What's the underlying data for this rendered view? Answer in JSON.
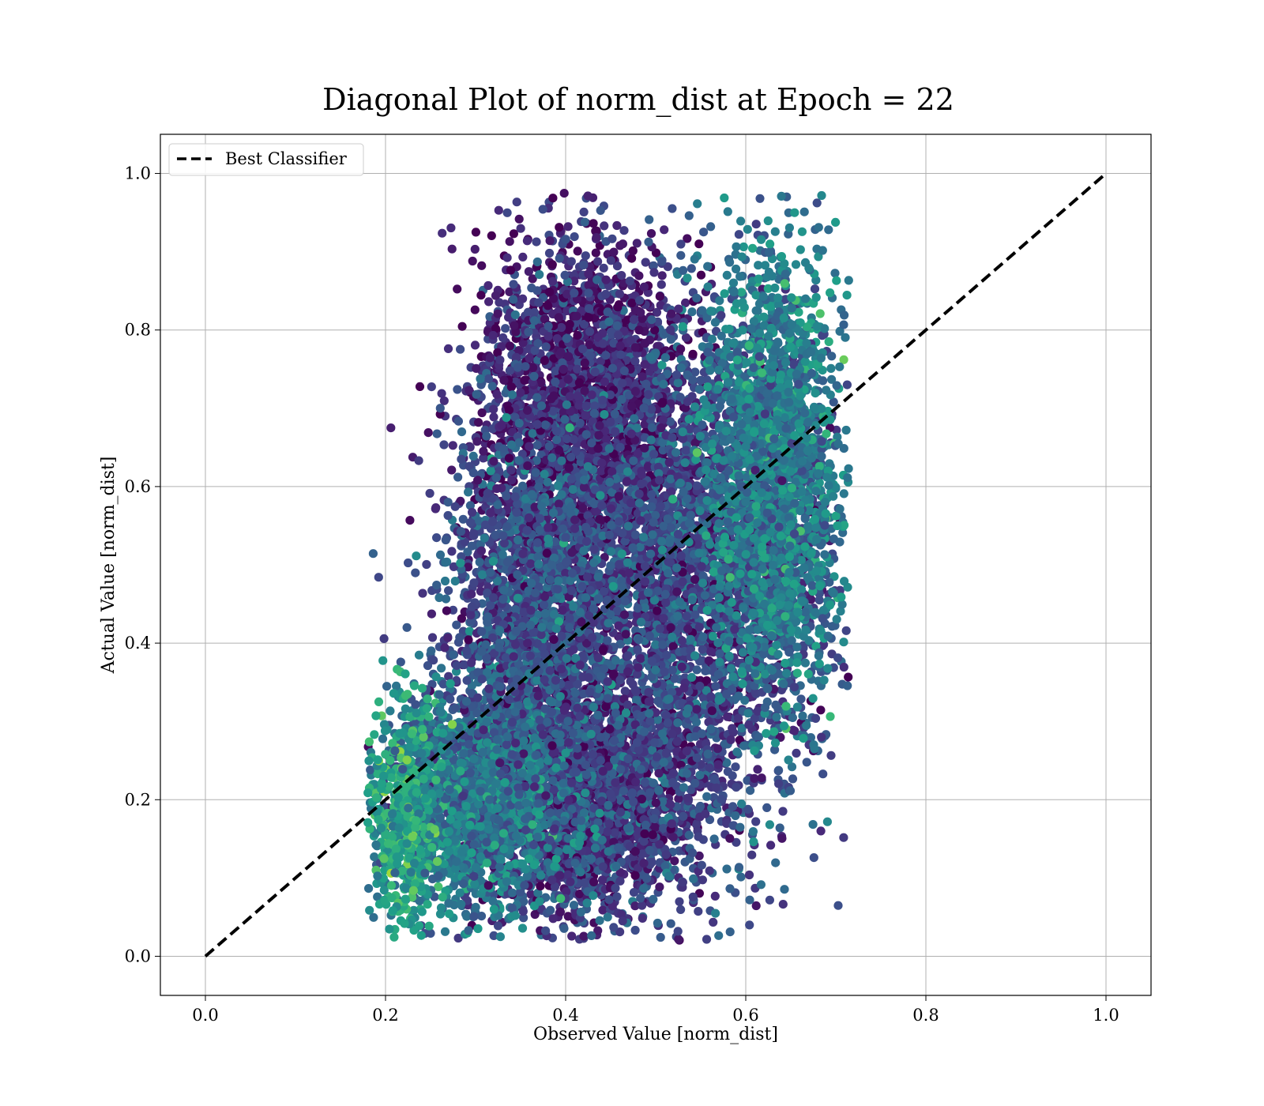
{
  "chart_data": {
    "type": "scatter",
    "title": "Diagonal Plot of norm_dist at Epoch = 22",
    "xlabel": "Observed Value [norm_dist]",
    "ylabel": "Actual Value [norm_dist]",
    "xlim": [
      -0.05,
      1.05
    ],
    "ylim": [
      -0.05,
      1.05
    ],
    "xticks": [
      0.0,
      0.2,
      0.4,
      0.6,
      0.8,
      1.0
    ],
    "yticks": [
      0.0,
      0.2,
      0.4,
      0.6,
      0.8,
      1.0
    ],
    "xtick_labels": [
      "0.0",
      "0.2",
      "0.4",
      "0.6",
      "0.8",
      "1.0"
    ],
    "ytick_labels": [
      "0.0",
      "0.2",
      "0.4",
      "0.6",
      "0.8",
      "1.0"
    ],
    "grid": true,
    "legend": {
      "placement": "top-left",
      "entries": [
        "Best Classifier"
      ]
    },
    "colormap": "viridis",
    "series": [
      {
        "name": "Best Classifier",
        "kind": "line",
        "style": "dashed",
        "color": "#000000",
        "x": [
          0.0,
          1.0
        ],
        "y": [
          0.0,
          1.0
        ]
      }
    ],
    "clusters": [
      {
        "cx": 0.42,
        "cy": 0.22,
        "sx": 0.07,
        "sy": 0.09,
        "n": 3000,
        "cmean": 0.18
      },
      {
        "cx": 0.3,
        "cy": 0.2,
        "sx": 0.05,
        "sy": 0.07,
        "n": 1700,
        "cmean": 0.4
      },
      {
        "cx": 0.42,
        "cy": 0.7,
        "sx": 0.06,
        "sy": 0.11,
        "n": 2600,
        "cmean": 0.12
      },
      {
        "cx": 0.55,
        "cy": 0.48,
        "sx": 0.07,
        "sy": 0.15,
        "n": 2800,
        "cmean": 0.22
      },
      {
        "cx": 0.63,
        "cy": 0.62,
        "sx": 0.04,
        "sy": 0.14,
        "n": 2000,
        "cmean": 0.42
      },
      {
        "cx": 0.36,
        "cy": 0.45,
        "sx": 0.05,
        "sy": 0.1,
        "n": 1500,
        "cmean": 0.25
      },
      {
        "cx": 0.22,
        "cy": 0.17,
        "sx": 0.02,
        "sy": 0.08,
        "n": 450,
        "cmean": 0.58
      }
    ],
    "bounds": {
      "xmin": 0.18,
      "xmax": 0.715,
      "ymin": 0.02,
      "ymax": 0.975
    }
  }
}
